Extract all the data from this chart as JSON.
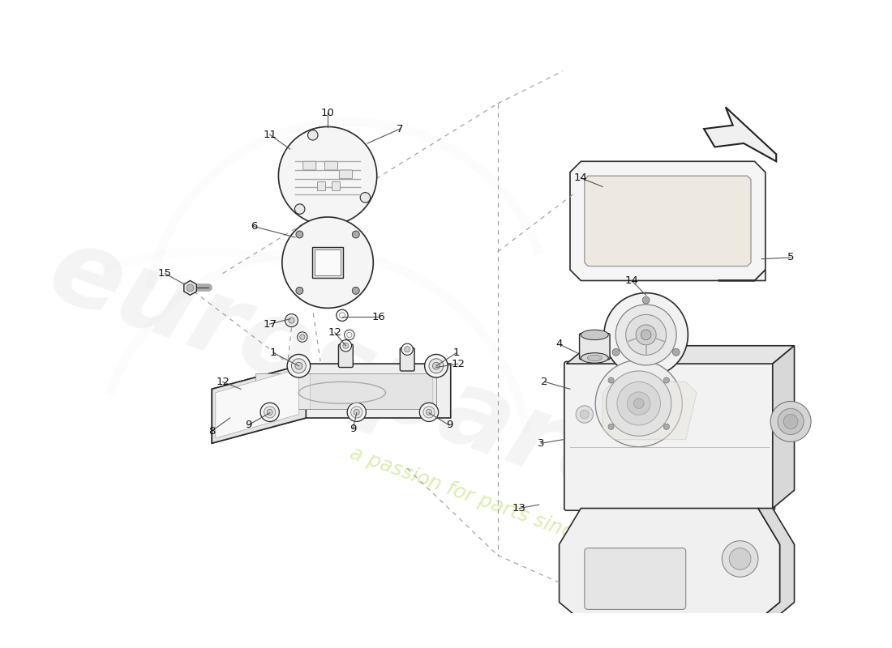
{
  "bg_color": "#ffffff",
  "lc": "#2a2a2a",
  "lc_light": "#888888",
  "fill_light": "#f5f5f5",
  "fill_mid": "#e8e8e8",
  "fill_dark": "#d0d0d0",
  "fill_very_light": "#fafafa",
  "dash_color": "#999999",
  "label_color": "#111111",
  "wm_gray": "#ececec",
  "wm_yellow": "#d8e8a0",
  "lw_main": 1.2,
  "lw_thin": 0.7,
  "fs_label": 9
}
